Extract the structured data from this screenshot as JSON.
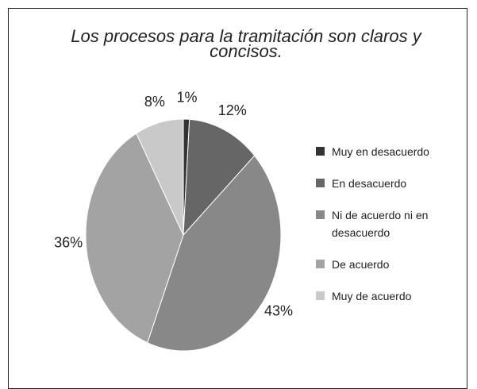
{
  "chart_data": {
    "type": "pie",
    "title": "Los procesos para la tramitación son claros y concisos.",
    "categories": [
      "Muy en desacuerdo",
      "En desacuerdo",
      "Ni de acuerdo ni en desacuerdo",
      "De acuerdo",
      "Muy de acuerdo"
    ],
    "values": [
      1,
      12,
      43,
      36,
      8
    ],
    "value_labels": [
      "1%",
      "12%",
      "43%",
      "36%",
      "8%"
    ],
    "colors": [
      "#333333",
      "#666666",
      "#888888",
      "#a3a3a3",
      "#c9c9c9"
    ],
    "legend": "right"
  }
}
